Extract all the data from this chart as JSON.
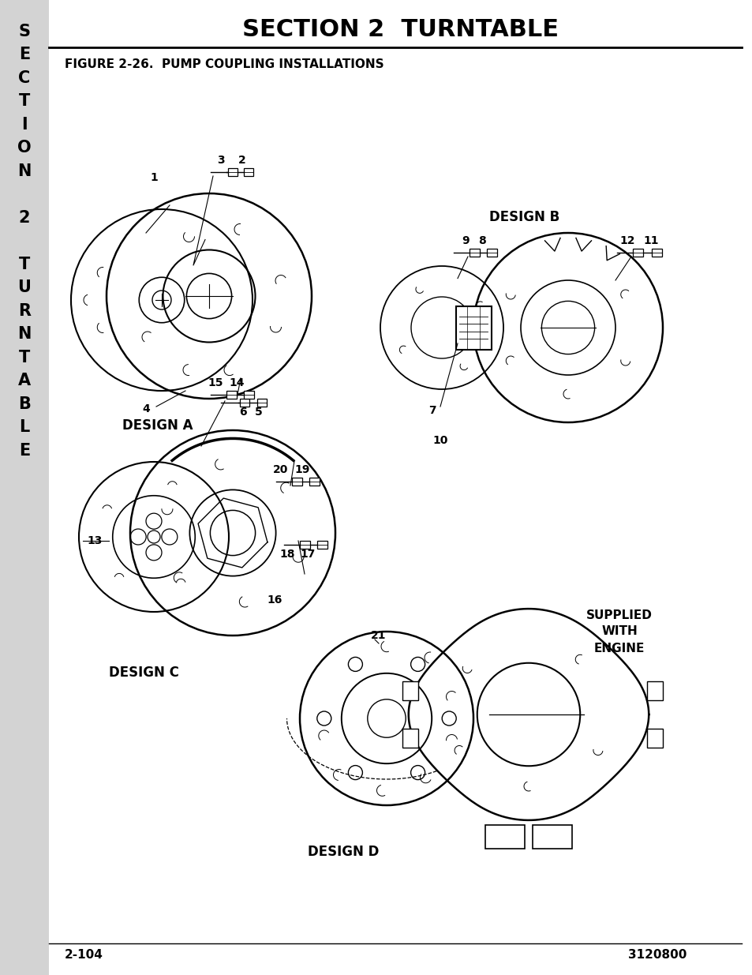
{
  "title": "SECTION 2  TURNTABLE",
  "figure_label": "FIGURE 2-26.  PUMP COUPLING INSTALLATIONS",
  "page_left": "2-104",
  "page_right": "3120800",
  "sidebar_bg": "#d3d3d3",
  "bg_color": "#ffffff",
  "title_fontsize": 22,
  "figure_label_fontsize": 11,
  "page_fontsize": 11,
  "sidebar_fontsize": 15,
  "design_a_label": "DESIGN A",
  "design_b_label": "DESIGN B",
  "design_c_label": "DESIGN C",
  "design_d_label": "DESIGN D",
  "supplied_text": "SUPPLIED\nWITH\nENGINE"
}
